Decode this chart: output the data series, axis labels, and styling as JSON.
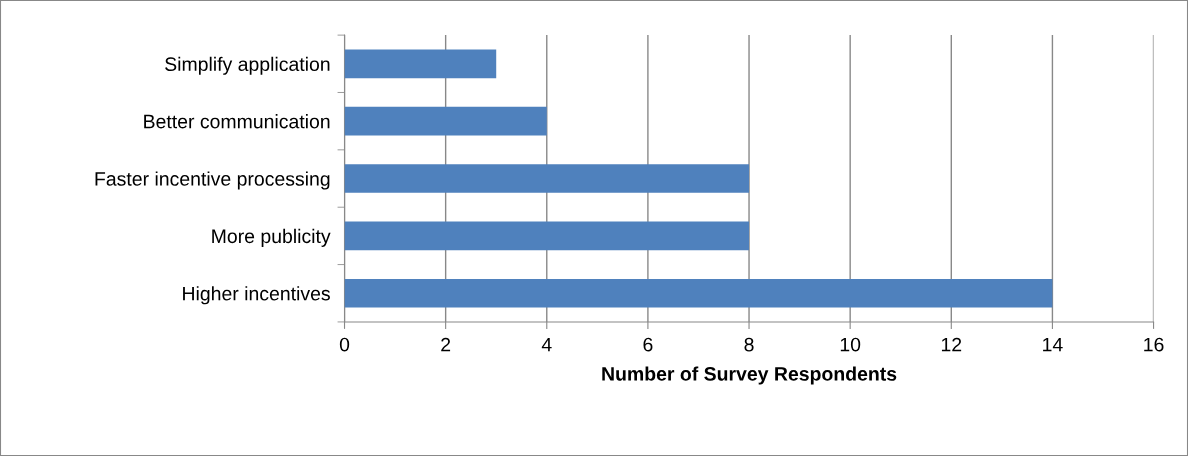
{
  "chart_data": {
    "type": "bar",
    "orientation": "horizontal",
    "xlabel": "Number of Survey Respondents",
    "categories": [
      "Simplify application",
      "Better communication",
      "Faster incentive processing",
      "More publicity",
      "Higher incentives"
    ],
    "values": [
      3,
      4,
      8,
      8,
      14
    ],
    "color": "#4f81bd",
    "xlim": [
      0,
      16
    ],
    "xticks": [
      0,
      2,
      4,
      6,
      8,
      10,
      12,
      14,
      16
    ],
    "grid": "x"
  }
}
